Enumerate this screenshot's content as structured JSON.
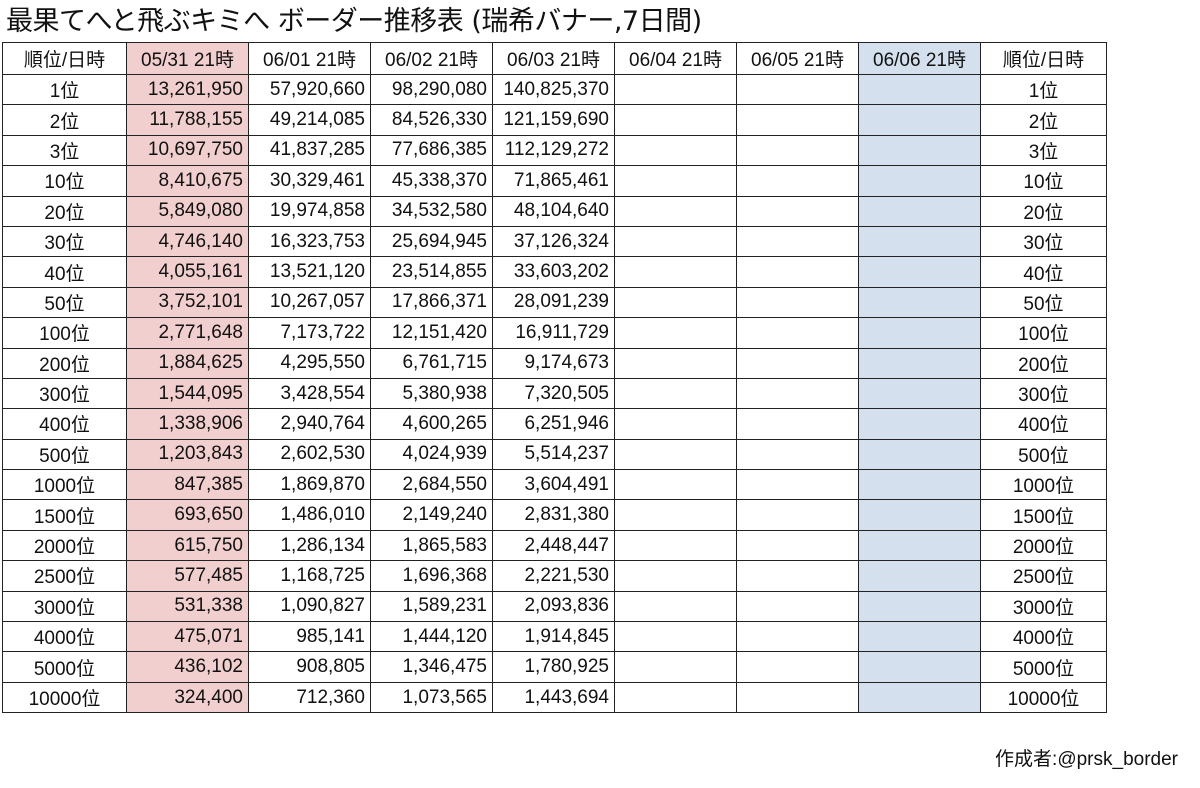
{
  "title": "最果てへと飛ぶキミへ ボーダー推移表 (瑞希バナー,7日間)",
  "header": [
    "順位/日時",
    "05/31 21時",
    "06/01 21時",
    "06/02 21時",
    "06/03 21時",
    "06/04 21時",
    "06/05 21時",
    "06/06 21時",
    "順位/日時"
  ],
  "rows": [
    {
      "rank": "1位",
      "values": [
        "13,261,950",
        "57,920,660",
        "98,290,080",
        "140,825,370",
        "",
        "",
        ""
      ]
    },
    {
      "rank": "2位",
      "values": [
        "11,788,155",
        "49,214,085",
        "84,526,330",
        "121,159,690",
        "",
        "",
        ""
      ]
    },
    {
      "rank": "3位",
      "values": [
        "10,697,750",
        "41,837,285",
        "77,686,385",
        "112,129,272",
        "",
        "",
        ""
      ]
    },
    {
      "rank": "10位",
      "values": [
        "8,410,675",
        "30,329,461",
        "45,338,370",
        "71,865,461",
        "",
        "",
        ""
      ]
    },
    {
      "rank": "20位",
      "values": [
        "5,849,080",
        "19,974,858",
        "34,532,580",
        "48,104,640",
        "",
        "",
        ""
      ]
    },
    {
      "rank": "30位",
      "values": [
        "4,746,140",
        "16,323,753",
        "25,694,945",
        "37,126,324",
        "",
        "",
        ""
      ]
    },
    {
      "rank": "40位",
      "values": [
        "4,055,161",
        "13,521,120",
        "23,514,855",
        "33,603,202",
        "",
        "",
        ""
      ]
    },
    {
      "rank": "50位",
      "values": [
        "3,752,101",
        "10,267,057",
        "17,866,371",
        "28,091,239",
        "",
        "",
        ""
      ]
    },
    {
      "rank": "100位",
      "values": [
        "2,771,648",
        "7,173,722",
        "12,151,420",
        "16,911,729",
        "",
        "",
        ""
      ]
    },
    {
      "rank": "200位",
      "values": [
        "1,884,625",
        "4,295,550",
        "6,761,715",
        "9,174,673",
        "",
        "",
        ""
      ]
    },
    {
      "rank": "300位",
      "values": [
        "1,544,095",
        "3,428,554",
        "5,380,938",
        "7,320,505",
        "",
        "",
        ""
      ]
    },
    {
      "rank": "400位",
      "values": [
        "1,338,906",
        "2,940,764",
        "4,600,265",
        "6,251,946",
        "",
        "",
        ""
      ]
    },
    {
      "rank": "500位",
      "values": [
        "1,203,843",
        "2,602,530",
        "4,024,939",
        "5,514,237",
        "",
        "",
        ""
      ]
    },
    {
      "rank": "1000位",
      "values": [
        "847,385",
        "1,869,870",
        "2,684,550",
        "3,604,491",
        "",
        "",
        ""
      ]
    },
    {
      "rank": "1500位",
      "values": [
        "693,650",
        "1,486,010",
        "2,149,240",
        "2,831,380",
        "",
        "",
        ""
      ]
    },
    {
      "rank": "2000位",
      "values": [
        "615,750",
        "1,286,134",
        "1,865,583",
        "2,448,447",
        "",
        "",
        ""
      ]
    },
    {
      "rank": "2500位",
      "values": [
        "577,485",
        "1,168,725",
        "1,696,368",
        "2,221,530",
        "",
        "",
        ""
      ]
    },
    {
      "rank": "3000位",
      "values": [
        "531,338",
        "1,090,827",
        "1,589,231",
        "2,093,836",
        "",
        "",
        ""
      ]
    },
    {
      "rank": "4000位",
      "values": [
        "475,071",
        "985,141",
        "1,444,120",
        "1,914,845",
        "",
        "",
        ""
      ]
    },
    {
      "rank": "5000位",
      "values": [
        "436,102",
        "908,805",
        "1,346,475",
        "1,780,925",
        "",
        "",
        ""
      ]
    },
    {
      "rank": "10000位",
      "values": [
        "324,400",
        "712,360",
        "1,073,565",
        "1,443,694",
        "",
        "",
        ""
      ]
    }
  ],
  "highlight_colors": {
    "first_day_column": "#f2cfcf",
    "last_day_column": "#d5e0ef"
  },
  "credit": "作成者:@prsk_border"
}
